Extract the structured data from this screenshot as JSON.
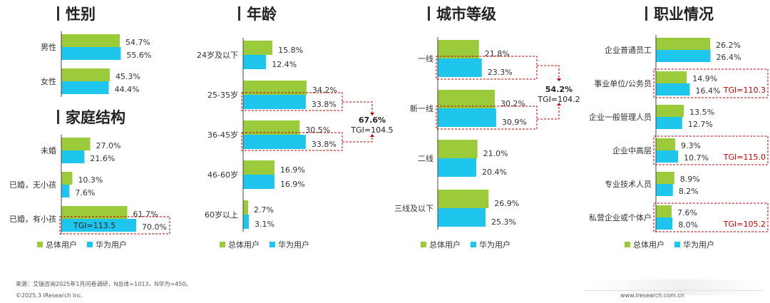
{
  "colors": {
    "overall": "#9BCB3B",
    "huawei": "#1EC6EE",
    "tgi_border": "#C00000",
    "text": "#333333"
  },
  "legend": {
    "overall_label": "总体用户",
    "huawei_label": "华为用户"
  },
  "footer": {
    "source": "来源：艾瑞咨询2025年1月问卷调研，N总体=1013，N华为=450。",
    "copyright": "©2025.3 iResearch Inc.",
    "website": "www.iresearch.com.cn"
  },
  "chart_data": [
    {
      "type": "bar",
      "orientation": "horizontal",
      "title": "性别",
      "categories": [
        "男性",
        "女性"
      ],
      "series": [
        {
          "name": "总体用户",
          "values": [
            54.7,
            45.3
          ]
        },
        {
          "name": "华为用户",
          "values": [
            55.6,
            44.4
          ]
        }
      ],
      "labels": [
        [
          "54.7%",
          "55.6%"
        ],
        [
          "45.3%",
          "44.4%"
        ]
      ],
      "annotations": []
    },
    {
      "type": "bar",
      "orientation": "horizontal",
      "title": "家庭结构",
      "categories": [
        "未婚",
        "已婚，无小孩",
        "已婚，有小孩"
      ],
      "series": [
        {
          "name": "总体用户",
          "values": [
            27.0,
            10.3,
            61.7
          ]
        },
        {
          "name": "华为用户",
          "values": [
            21.6,
            7.6,
            70.0
          ]
        }
      ],
      "labels": [
        [
          "27.0%",
          "21.6%"
        ],
        [
          "10.3%",
          "7.6%"
        ],
        [
          "61.7%",
          "70.0%"
        ]
      ],
      "annotations": [
        {
          "category_index": 2,
          "tgi": "TGI=113.5"
        }
      ]
    },
    {
      "type": "bar",
      "orientation": "horizontal",
      "title": "年龄",
      "categories": [
        "24岁及以下",
        "25-35岁",
        "36-45岁",
        "46-60岁",
        "60岁以上"
      ],
      "series": [
        {
          "name": "总体用户",
          "values": [
            15.8,
            34.2,
            30.5,
            16.9,
            2.7
          ]
        },
        {
          "name": "华为用户",
          "values": [
            12.4,
            33.8,
            33.8,
            16.9,
            3.1
          ]
        }
      ],
      "labels": [
        [
          "15.8%",
          "12.4%"
        ],
        [
          "34.2%",
          "33.8%"
        ],
        [
          "30.5%",
          "33.8%"
        ],
        [
          "16.9%",
          "16.9%"
        ],
        [
          "2.7%",
          "3.1%"
        ]
      ],
      "combined": {
        "categories": [
          1,
          2
        ],
        "value": "67.6%",
        "tgi": "TGI=104.5"
      }
    },
    {
      "type": "bar",
      "orientation": "horizontal",
      "title": "城市等级",
      "categories": [
        "一线",
        "新一线",
        "二线",
        "三线及以下"
      ],
      "series": [
        {
          "name": "总体用户",
          "values": [
            21.8,
            30.2,
            21.0,
            26.9
          ]
        },
        {
          "name": "华为用户",
          "values": [
            23.3,
            30.9,
            20.4,
            25.3
          ]
        }
      ],
      "labels": [
        [
          "21.8%",
          "23.3%"
        ],
        [
          "30.2%",
          "30.9%"
        ],
        [
          "21.0%",
          "20.4%"
        ],
        [
          "26.9%",
          "25.3%"
        ]
      ],
      "combined": {
        "categories": [
          0,
          1
        ],
        "value": "54.2%",
        "tgi": "TGI=104.2"
      }
    },
    {
      "type": "bar",
      "orientation": "horizontal",
      "title": "职业情况",
      "categories": [
        "企业普通员工",
        "事业单位/公务员",
        "企业一般管理人员",
        "企业中高层",
        "专业技术人员",
        "私营企业或个体户"
      ],
      "series": [
        {
          "name": "总体用户",
          "values": [
            26.2,
            14.9,
            13.5,
            9.3,
            8.9,
            7.6
          ]
        },
        {
          "name": "华为用户",
          "values": [
            26.4,
            16.4,
            12.7,
            10.7,
            8.2,
            8.0
          ]
        }
      ],
      "labels": [
        [
          "26.2%",
          "26.4%"
        ],
        [
          "14.9%",
          "16.4%"
        ],
        [
          "13.5%",
          "12.7%"
        ],
        [
          "9.3%",
          "10.7%"
        ],
        [
          "8.9%",
          "8.2%"
        ],
        [
          "7.6%",
          "8.0%"
        ]
      ],
      "annotations": [
        {
          "category_index": 1,
          "tgi": "TGI=110.3"
        },
        {
          "category_index": 3,
          "tgi": "TGI=115.0"
        },
        {
          "category_index": 5,
          "tgi": "TGI=105.2"
        }
      ]
    }
  ]
}
